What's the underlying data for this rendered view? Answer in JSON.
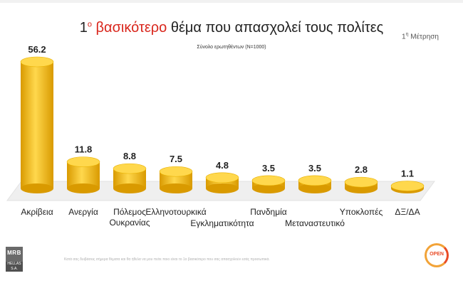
{
  "header": {
    "title_superscript": "ο",
    "title_highlight": "βασικότερο",
    "title_rest": " θέμα που απασχολεί τους πολίτες",
    "measurement_superscript": "η",
    "measurement_label": "Μέτρηση",
    "sample_note": "Σύνολο ερωτηθέντων (N=1000)"
  },
  "chart_data": {
    "type": "bar",
    "title": "1ο βασικότερο θέμα που απασχολεί τους πολίτες",
    "subtitle": "Σύνολο ερωτηθέντων (N=1000)",
    "categories": [
      [
        "Ακρίβεια"
      ],
      [
        "Ανεργία"
      ],
      [
        "Πόλεμος",
        "Ουκρανίας"
      ],
      [
        "Ελληνοτουρκικά"
      ],
      [
        "Εγκληματικότητα"
      ],
      [
        "Πανδημία"
      ],
      [
        "Μεταναστευτικό"
      ],
      [
        "Υποκλοπές"
      ],
      [
        "ΔΞ/ΔΑ"
      ]
    ],
    "values": [
      56.2,
      11.8,
      8.8,
      7.5,
      4.8,
      3.5,
      3.5,
      2.8,
      1.1
    ],
    "value_labels": [
      "56.2",
      "11.8",
      "8.8",
      "7.5",
      "4.8",
      "3.5",
      "3.5",
      "2.8",
      "1.1"
    ],
    "ylim": [
      0,
      56.2
    ],
    "grid": false,
    "legend": "none",
    "bar_style": "3d-cylinder",
    "bar_color": "#f5b800",
    "bar_dark": "#d99a00",
    "bar_light": "#ffd84d",
    "floor_color": "#efefef"
  },
  "footer": {
    "note": "Κατά σας δυιβάσεις σήμερα θέματα και θα ήθελα να μου πείτε ποιο είναι το 1ο βασικότερο που σας απασχολούν εσάς προσωπικά.",
    "logo_left": "MRB",
    "logo_left_sub": "HELLAS S.A.",
    "logo_right": "OPEN"
  }
}
